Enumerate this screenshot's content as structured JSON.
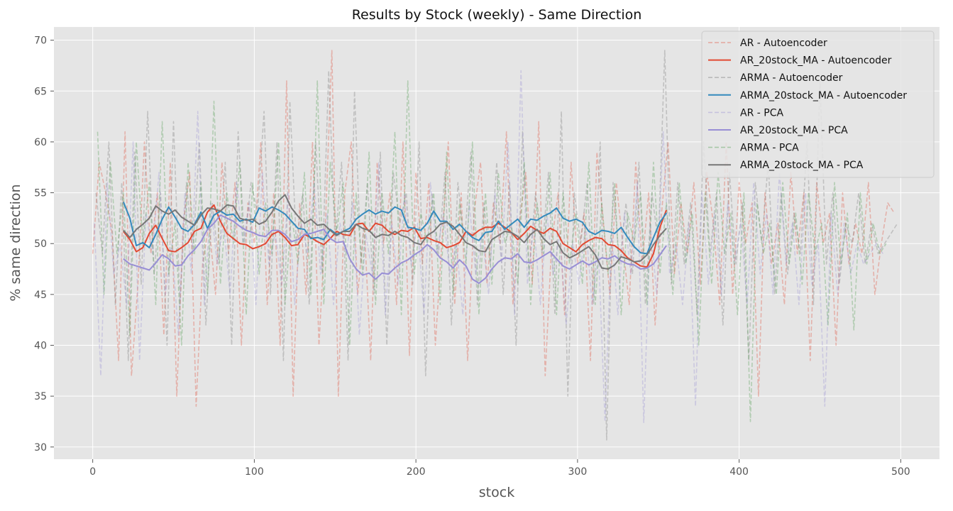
{
  "chart_data": {
    "type": "line",
    "title": "Results by Stock (weekly) - Same Direction",
    "xlabel": "stock",
    "ylabel": "% same direction",
    "xlim": [
      -24,
      524
    ],
    "ylim": [
      28.8,
      71.3
    ],
    "xticks": [
      0,
      100,
      200,
      300,
      400,
      500
    ],
    "yticks": [
      30,
      35,
      40,
      45,
      50,
      55,
      60,
      65,
      70
    ],
    "grid": true,
    "legend_position": "top-right",
    "background_color": "#e5e5e5",
    "series": [
      {
        "name": "AR - Autoencoder",
        "color": "#e24a33",
        "style": "dashed",
        "alpha": 0.33,
        "x_start": 0,
        "x_step": 4,
        "values": [
          49,
          58,
          55,
          51,
          38.5,
          61,
          37,
          46,
          60,
          49,
          55,
          41,
          58,
          35,
          52,
          57,
          34,
          48,
          52,
          45,
          58,
          49,
          56,
          40,
          54,
          50,
          60,
          44,
          55,
          40,
          66,
          35,
          54,
          45,
          60,
          40,
          52,
          69,
          35,
          55,
          60,
          45,
          52,
          38.5,
          58,
          50,
          55,
          44,
          60,
          39,
          57,
          48,
          56,
          40,
          50,
          60,
          44,
          55,
          38.5,
          53,
          58,
          46,
          54,
          50,
          61,
          44,
          52,
          57,
          46,
          62,
          37,
          50,
          55,
          43,
          58,
          48,
          53,
          38.5,
          59,
          52,
          45,
          56,
          50,
          44,
          58,
          48,
          55,
          42,
          53,
          60,
          47,
          54,
          49,
          56,
          46,
          57,
          52,
          44,
          60,
          45,
          56,
          50,
          54,
          35,
          55,
          48,
          52,
          44,
          57,
          49,
          55,
          38.5,
          56,
          50,
          53,
          40,
          55,
          48,
          52,
          49,
          56,
          45,
          50,
          54,
          53
        ]
      },
      {
        "name": "AR_20stock_MA - Autoencoder",
        "color": "#e24a33",
        "style": "solid",
        "alpha": 1,
        "x_start": 19,
        "x_step": 4,
        "values": [
          51.2,
          50.4,
          49.2,
          49.6,
          51,
          51.8,
          50.5,
          49.3,
          49.2,
          49.6,
          50.1,
          51.2,
          51.5,
          53.1,
          53.8,
          52.2,
          51,
          50.5,
          50,
          49.9,
          49.5,
          49.7,
          50,
          50.9,
          51.2,
          50.6,
          49.8,
          49.9,
          50.9,
          50.6,
          50.2,
          49.9,
          50.5,
          51.2,
          50.9,
          50.8,
          51.9,
          52,
          51.2,
          52,
          51.8,
          51.2,
          50.9,
          51.3,
          51.2,
          51.6,
          50.5,
          50.6,
          50.3,
          50.1,
          49.6,
          49.8,
          50.1,
          51.2,
          50.8,
          51.3,
          51.6,
          51.6,
          52,
          51.6,
          51.1,
          50.4,
          51,
          51.7,
          51.3,
          51,
          51.5,
          51.2,
          50,
          49.6,
          49.2,
          49.9,
          50.3,
          50.6,
          50.5,
          49.9,
          49.8,
          49.3,
          48.6,
          48.2,
          47.8,
          47.7,
          49,
          51.6,
          53.3
        ]
      },
      {
        "name": "ARMA - Autoencoder",
        "color": "#777777",
        "style": "dashed",
        "alpha": 0.33,
        "x_start": 2,
        "x_step": 4,
        "values": [
          55,
          49,
          60,
          44,
          56,
          38.5,
          59,
          46,
          63,
          47,
          55,
          40,
          62,
          44,
          56,
          49,
          60,
          42,
          54,
          48,
          58,
          40,
          61,
          50,
          56,
          53,
          63,
          45,
          60,
          38.5,
          64,
          50,
          55,
          44,
          60,
          47,
          67,
          50,
          58,
          38.5,
          65,
          48,
          56,
          45,
          59,
          40,
          57,
          52,
          55,
          46,
          60,
          37,
          55,
          49,
          57,
          42,
          56,
          50,
          59,
          44,
          54,
          48,
          58,
          45,
          56,
          40,
          61,
          47,
          55,
          49,
          57,
          43,
          63,
          35,
          55,
          50,
          56,
          44,
          60,
          30.7,
          56,
          48,
          54,
          47,
          58,
          44,
          55,
          50,
          69,
          46,
          56,
          48,
          54,
          43,
          60,
          49,
          55,
          42,
          57,
          48,
          54,
          38.5,
          56,
          50,
          58,
          45,
          55,
          47,
          53,
          49,
          60,
          44,
          66,
          48,
          55,
          46,
          52,
          50,
          55,
          48,
          52,
          49,
          50,
          51,
          52
        ]
      },
      {
        "name": "ARMA_20stock_MA - Autoencoder",
        "color": "#348abd",
        "style": "solid",
        "alpha": 1,
        "x_start": 19,
        "x_step": 4,
        "values": [
          54.1,
          52.5,
          49.8,
          50.1,
          49.6,
          50.9,
          52.4,
          53.6,
          52.6,
          51.5,
          51.2,
          51.9,
          53.1,
          51.5,
          52.8,
          53.2,
          52.8,
          52.9,
          52.2,
          52.4,
          52.1,
          53.5,
          53.2,
          53.6,
          53.3,
          52.9,
          52.2,
          51.5,
          51.4,
          50.5,
          50.6,
          50.4,
          51.4,
          50.9,
          51.2,
          51.5,
          52.4,
          52.9,
          53.3,
          52.9,
          53.2,
          53,
          53.6,
          53.3,
          51.6,
          51.5,
          51.3,
          52,
          53.2,
          52.2,
          52.2,
          51.4,
          51.9,
          51.2,
          50.6,
          50.3,
          51.1,
          51.2,
          52.2,
          51.4,
          51.9,
          52.4,
          51.6,
          52.4,
          52.3,
          52.7,
          53,
          53.5,
          52.5,
          52.2,
          52.4,
          52.1,
          51.2,
          50.9,
          51.3,
          51.2,
          51,
          51.6,
          50.6,
          49.7,
          49.1,
          49,
          50.6,
          52.1,
          53
        ]
      },
      {
        "name": "AR - PCA",
        "color": "#988ed5",
        "style": "dashed",
        "alpha": 0.33,
        "x_start": 1,
        "x_step": 4,
        "values": [
          52,
          37,
          56,
          47,
          50,
          44,
          60,
          38.5,
          53,
          49,
          57,
          45,
          50,
          41,
          55,
          47,
          63,
          44,
          54,
          48,
          52,
          45,
          56,
          50,
          54,
          44,
          57,
          48,
          51,
          46,
          55,
          44,
          52,
          49,
          56,
          47,
          53,
          44,
          52,
          49,
          54,
          41,
          51,
          47,
          58,
          43,
          52,
          46,
          55,
          48,
          52,
          43,
          56,
          49,
          53,
          47,
          50,
          43,
          54,
          47,
          51,
          45,
          55,
          48,
          60,
          43,
          67,
          46,
          52,
          44,
          53,
          47,
          51,
          42,
          50,
          46,
          52,
          44,
          49,
          32.5,
          51,
          43,
          53,
          47,
          56,
          32.4,
          52,
          45,
          61,
          47,
          50,
          44,
          52,
          34,
          55,
          46,
          53,
          45,
          54,
          48,
          52,
          44,
          56,
          47,
          53,
          45,
          57,
          48,
          52,
          44,
          55,
          46,
          50,
          34,
          53,
          45,
          52,
          47,
          50,
          48,
          49,
          50,
          49
        ]
      },
      {
        "name": "AR_20stock_MA - PCA",
        "color": "#988ed5",
        "style": "solid",
        "alpha": 1,
        "x_start": 19,
        "x_step": 4,
        "values": [
          48.5,
          48,
          47.8,
          47.6,
          47.4,
          48.1,
          48.9,
          48.5,
          47.8,
          47.9,
          48.8,
          49.4,
          50.2,
          51.4,
          52,
          52.8,
          52.5,
          52.2,
          51.7,
          51.3,
          51.1,
          50.8,
          50.7,
          51.3,
          51.3,
          50.9,
          50.2,
          50.4,
          50.9,
          51,
          51.2,
          51.4,
          50.5,
          50.1,
          50.2,
          48.5,
          47.5,
          46.9,
          47.1,
          46.5,
          47.1,
          47,
          47.6,
          48.1,
          48.4,
          48.9,
          49.3,
          49.9,
          49.4,
          48.6,
          48.2,
          47.6,
          48.4,
          47.8,
          46.5,
          46.1,
          46.6,
          47.5,
          48.2,
          48.6,
          48.5,
          49,
          48.2,
          48.1,
          48.4,
          48.8,
          49.2,
          48.5,
          47.8,
          47.5,
          47.9,
          48.3,
          47.9,
          48.2,
          48.6,
          48.5,
          48.8,
          48.3,
          48,
          47.9,
          47.5,
          47.6,
          48,
          48.9,
          49.8
        ]
      },
      {
        "name": "ARMA - PCA",
        "color": "#4c9a4c",
        "style": "dashed",
        "alpha": 0.33,
        "x_start": 3,
        "x_step": 4,
        "values": [
          61,
          45,
          58,
          49,
          55,
          41,
          60,
          50,
          56,
          44,
          62,
          47,
          52,
          40,
          58,
          49,
          56,
          45,
          64,
          46,
          55,
          50,
          58,
          43,
          56,
          47,
          54,
          49,
          60,
          44,
          53,
          48,
          57,
          45,
          66,
          44,
          58,
          51,
          56,
          40,
          55,
          47,
          59,
          44,
          55,
          49,
          61,
          43,
          66,
          47,
          53,
          50,
          55,
          44,
          59,
          45,
          54,
          48,
          60,
          43,
          55,
          46,
          57,
          50,
          52,
          46,
          58,
          44,
          54,
          49,
          57,
          43,
          55,
          48,
          53,
          46,
          58,
          44,
          54,
          47,
          56,
          43,
          53,
          50,
          55,
          44,
          58,
          47,
          54,
          45,
          56,
          48,
          53,
          40,
          55,
          46,
          57,
          49,
          53,
          43,
          55,
          32.5,
          54,
          49,
          52,
          45,
          56,
          48,
          53,
          46,
          55,
          49,
          52,
          42,
          56,
          48,
          53,
          41.5,
          55,
          48,
          52,
          49,
          50
        ]
      },
      {
        "name": "ARMA_20stock_MA - PCA",
        "color": "#777777",
        "style": "solid",
        "alpha": 1,
        "x_start": 19,
        "x_step": 4,
        "values": [
          51.3,
          50.6,
          51.4,
          51.9,
          52.5,
          53.7,
          53.2,
          52.9,
          53.3,
          52.6,
          52.2,
          51.8,
          52.8,
          53.5,
          53.4,
          53.2,
          53.8,
          53.7,
          52.5,
          52.3,
          52.4,
          51.9,
          52.2,
          53.1,
          54.2,
          54.8,
          53.5,
          52.7,
          52,
          52.4,
          51.8,
          51.9,
          51.3,
          50.8,
          51.2,
          51.2,
          51.9,
          51.5,
          51.3,
          50.6,
          50.9,
          50.8,
          51.2,
          50.8,
          50.6,
          50.1,
          49.9,
          50.8,
          51.2,
          51.9,
          52.1,
          51.7,
          50.9,
          50.1,
          49.8,
          49.3,
          49.2,
          50.4,
          50.8,
          51.2,
          51.1,
          50.7,
          50.1,
          50.9,
          51.4,
          50.5,
          49.9,
          50.2,
          49.1,
          48.6,
          48.9,
          49.3,
          49.7,
          48.9,
          47.6,
          47.5,
          47.9,
          48.7,
          48.5,
          48.2,
          48.3,
          48.9,
          49.9,
          50.8,
          51.5
        ]
      }
    ]
  }
}
